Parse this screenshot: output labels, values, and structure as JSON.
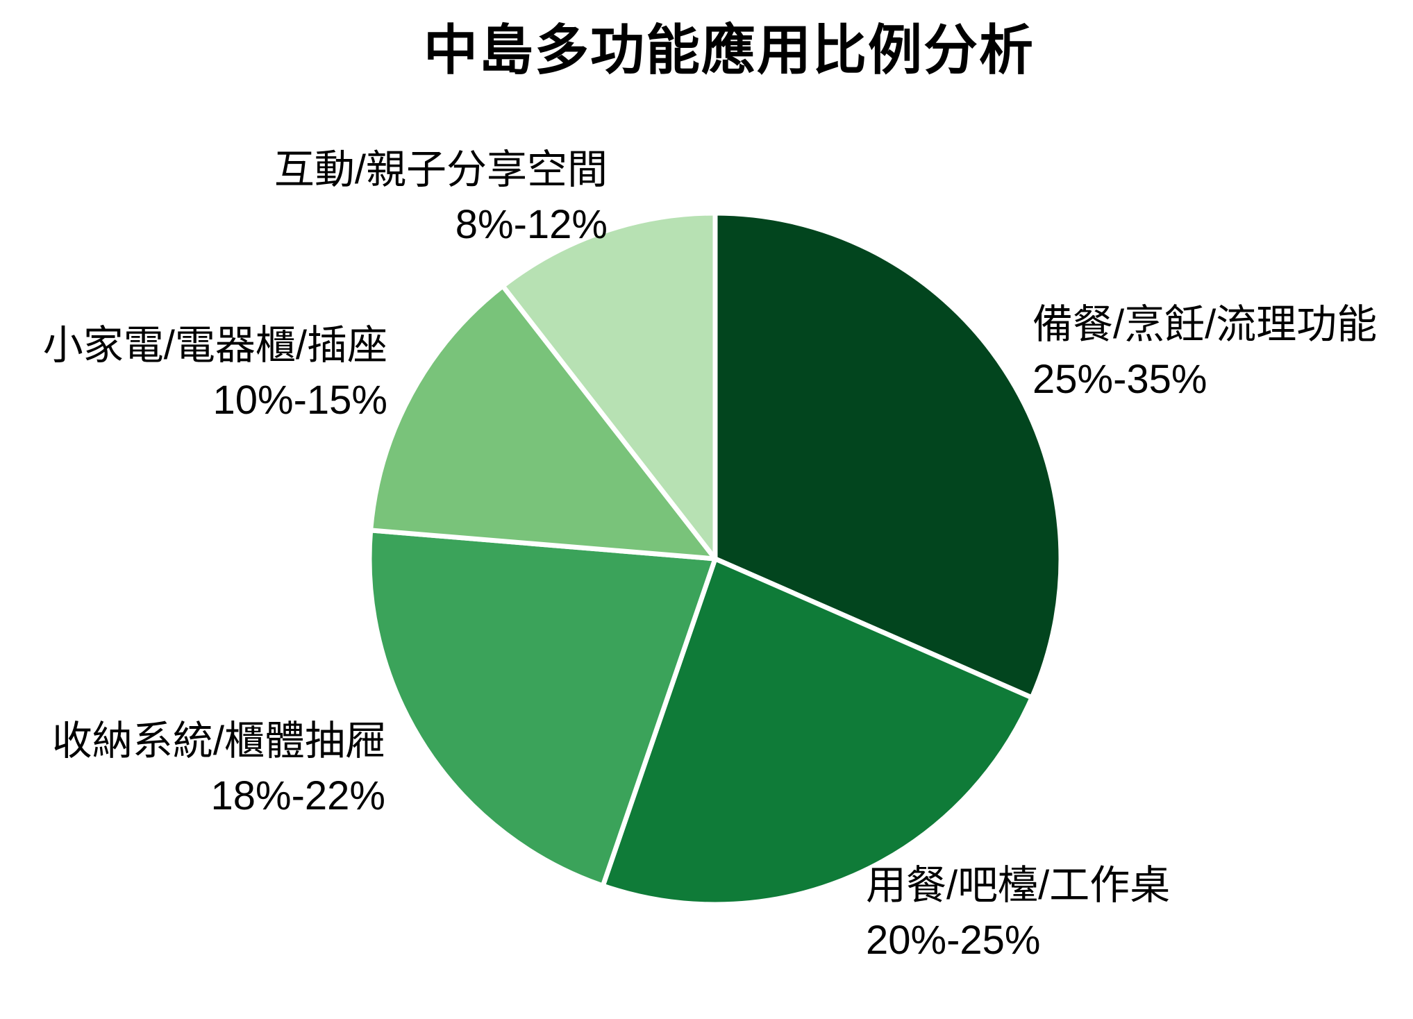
{
  "title": "中島多功能應用比例分析",
  "chart_data": {
    "type": "pie",
    "title": "中島多功能應用比例分析",
    "direction": "clockwise",
    "start_angle": "12-o-clock",
    "legend": "none",
    "labels_position": "outside",
    "background": "#ffffff",
    "separator_color": "#ffffff",
    "slices": [
      {
        "label": "備餐/烹飪/流理功能",
        "range": "25%-35%",
        "value_mid": 30,
        "color": "#02451e"
      },
      {
        "label": "用餐/吧檯/工作桌",
        "range": "20%-25%",
        "value_mid": 22.5,
        "color": "#0f7b38"
      },
      {
        "label": "收納系統/櫃體抽屜",
        "range": "18%-22%",
        "value_mid": 20,
        "color": "#3ba35a"
      },
      {
        "label": "小家電/電器櫃/插座",
        "range": "10%-15%",
        "value_mid": 12.5,
        "color": "#79c37a"
      },
      {
        "label": "互動/親子分享空間",
        "range": "8%-12%",
        "value_mid": 10,
        "color": "#b7e1b3"
      }
    ]
  }
}
